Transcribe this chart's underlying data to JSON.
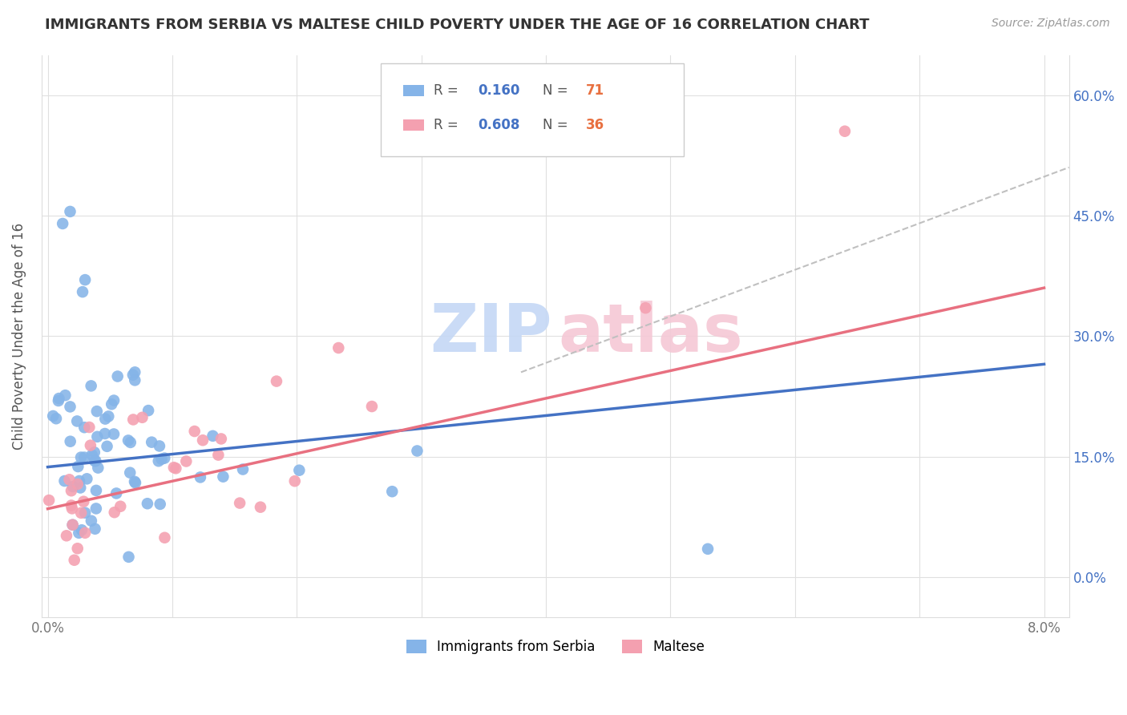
{
  "title": "IMMIGRANTS FROM SERBIA VS MALTESE CHILD POVERTY UNDER THE AGE OF 16 CORRELATION CHART",
  "source": "Source: ZipAtlas.com",
  "ylabel": "Child Poverty Under the Age of 16",
  "serbia_R": 0.16,
  "serbia_N": 71,
  "maltese_R": 0.608,
  "maltese_N": 36,
  "serbia_color": "#85b4e8",
  "maltese_color": "#f4a0b0",
  "serbia_line_color": "#4472c4",
  "maltese_line_color": "#e87080",
  "dashed_line_color": "#c0c0c0",
  "watermark_color_zip": "#c5d8f5",
  "watermark_color_atlas": "#f5c8d5",
  "legend_R_color": "#4472c4",
  "legend_N_color": "#e87040",
  "x_tick_positions": [
    0.0,
    0.01,
    0.02,
    0.03,
    0.04,
    0.05,
    0.06,
    0.07,
    0.08
  ],
  "x_tick_labels": [
    "0.0%",
    "",
    "",
    "",
    "",
    "",
    "",
    "",
    "8.0%"
  ],
  "y_ticks": [
    0.0,
    0.15,
    0.3,
    0.45,
    0.6
  ],
  "y_tick_labels_right": [
    "0.0%",
    "15.0%",
    "30.0%",
    "45.0%",
    "60.0%"
  ],
  "xlim": [
    -0.0005,
    0.082
  ],
  "ylim": [
    -0.05,
    0.65
  ],
  "serbia_line_x": [
    0.0,
    0.08
  ],
  "serbia_line_y": [
    0.137,
    0.265
  ],
  "maltese_line_x": [
    0.0,
    0.08
  ],
  "maltese_line_y": [
    0.085,
    0.36
  ],
  "dashed_line_x": [
    0.038,
    0.082
  ],
  "dashed_line_y": [
    0.255,
    0.51
  ]
}
